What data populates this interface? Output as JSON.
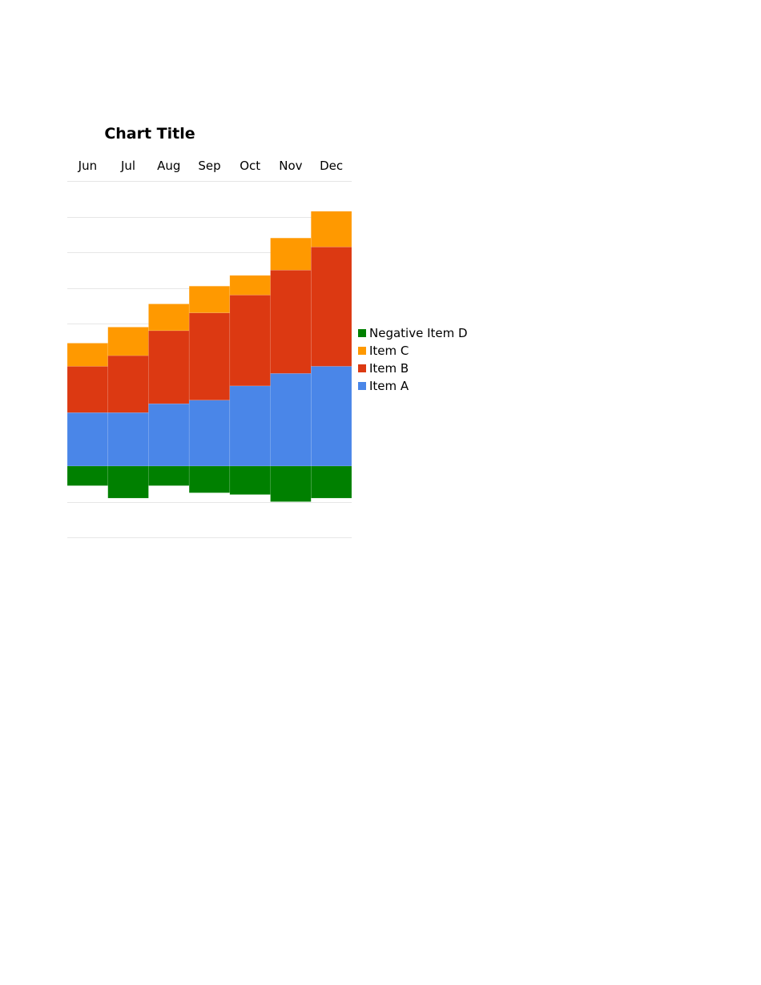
{
  "chart_data": {
    "type": "bar",
    "stacked": true,
    "title": "Chart Title",
    "xlabel": "",
    "ylabel": "",
    "categories": [
      "Jun",
      "Jul",
      "Aug",
      "Sep",
      "Oct",
      "Nov",
      "Dec"
    ],
    "x_axis_position": "top",
    "ylim": [
      -20,
      80
    ],
    "grid": true,
    "legend_position": "right",
    "series": [
      {
        "name": "Item A",
        "color": "#4a86e8",
        "values": [
          15,
          15,
          17.5,
          18.5,
          22.5,
          26,
          28
        ]
      },
      {
        "name": "Item B",
        "color": "#dc3912",
        "values": [
          13,
          16,
          20.5,
          24.5,
          25.5,
          29,
          33.5
        ]
      },
      {
        "name": "Item C",
        "color": "#ff9900",
        "values": [
          6.5,
          8,
          7.5,
          7.5,
          5.5,
          9,
          10
        ]
      },
      {
        "name": "Negative Item D",
        "color": "#008000",
        "values": [
          -5.5,
          -9,
          -5.5,
          -7.5,
          -8,
          -10,
          -9
        ]
      }
    ],
    "legend_order": [
      "Negative Item D",
      "Item C",
      "Item B",
      "Item A"
    ]
  }
}
